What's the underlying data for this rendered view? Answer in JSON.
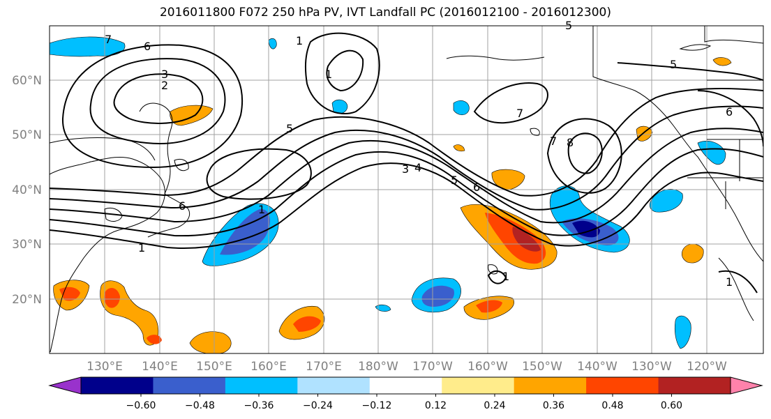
{
  "title": "2016011800 F072 250 hPa PV, IVT Landfall PC (2016012100 - 2016012300)",
  "lat_labels": [
    "60°N",
    "50°N",
    "40°N",
    "30°N",
    "20°N"
  ],
  "lon_labels": [
    "130°E",
    "140°E",
    "150°E",
    "160°E",
    "170°E",
    "180°W",
    "170°W",
    "160°W",
    "150°W",
    "140°W",
    "130°W",
    "120°W"
  ],
  "colorbar": {
    "ticks": [
      "−0.60",
      "−0.48",
      "−0.36",
      "−0.24",
      "−0.12",
      "0.12",
      "0.24",
      "0.36",
      "0.48",
      "0.60"
    ],
    "colors": [
      "#9932cc",
      "#00008b",
      "#3a5fcd",
      "#00bfff",
      "#b0e2ff",
      "#ffffff",
      "#ffec8b",
      "#ffa500",
      "#ff4500",
      "#b22222",
      "#ff82ab"
    ]
  },
  "contour_labels": [
    "7",
    "6",
    "3",
    "2",
    "5",
    "6",
    "1",
    "1",
    "1",
    "3",
    "4",
    "5",
    "6",
    "7",
    "7",
    "8",
    "5",
    "6",
    "1",
    "1",
    "1",
    "5"
  ]
}
